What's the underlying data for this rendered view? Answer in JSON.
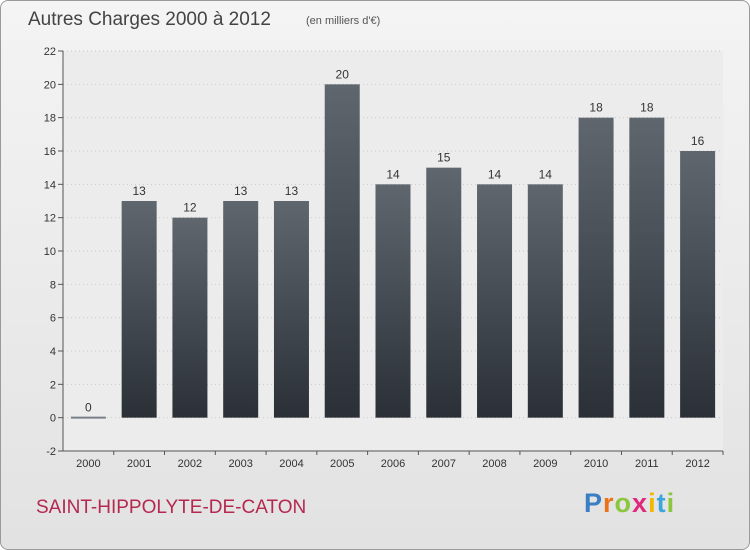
{
  "chart_data": {
    "type": "bar",
    "title": "Autres Charges 2000 à 2012",
    "subtitle": "(en milliers d'€)",
    "categories": [
      "2000",
      "2001",
      "2002",
      "2003",
      "2004",
      "2005",
      "2006",
      "2007",
      "2008",
      "2009",
      "2010",
      "2011",
      "2012"
    ],
    "values": [
      0,
      13,
      12,
      13,
      13,
      20,
      14,
      15,
      14,
      14,
      18,
      18,
      16
    ],
    "data_labels": [
      "0",
      "13",
      "12",
      "13",
      "13",
      "20",
      "14",
      "15",
      "14",
      "14",
      "18",
      "18",
      "16"
    ],
    "ylim": [
      -2,
      22
    ],
    "yticks": [
      "-2",
      "0",
      "2",
      "4",
      "6",
      "8",
      "10",
      "12",
      "14",
      "16",
      "18",
      "20",
      "22"
    ],
    "grid": true,
    "bar_color": "#4a5159",
    "zero_line_color": "#7a8088"
  },
  "footer": {
    "commune": "SAINT-HIPPOLYTE-DE-CATON",
    "logo_letters": [
      "P",
      "r",
      "o",
      "x",
      "i",
      "t",
      "i"
    ],
    "logo_colors": [
      "#3a7fc4",
      "#e8731a",
      "#8cc63f",
      "#e0297b",
      "#f2b700",
      "#3aa6dd",
      "#8cc63f"
    ]
  }
}
